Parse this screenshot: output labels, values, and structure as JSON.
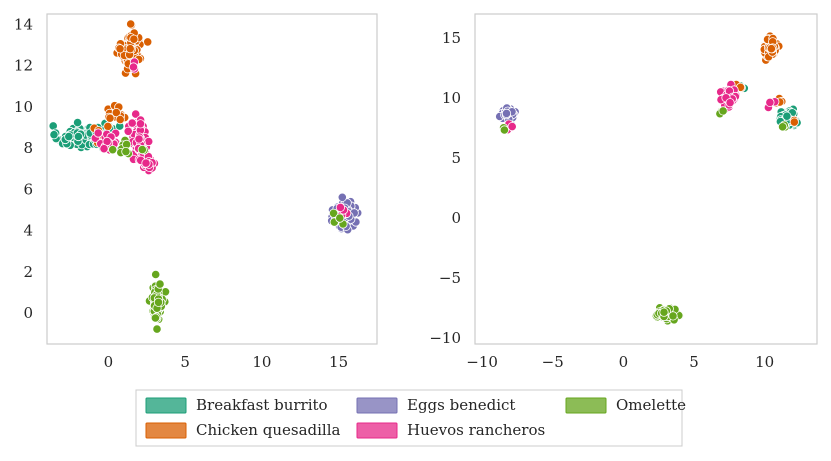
{
  "chart_data": [
    {
      "type": "scatter",
      "title": "",
      "xlabel": "",
      "ylabel": "",
      "xlim": [
        -4,
        17.5
      ],
      "ylim": [
        -1.5,
        14.5
      ],
      "grid": false,
      "xticks": [
        0,
        5,
        10,
        15
      ],
      "xtick_labels": [
        "0",
        "5",
        "10",
        "15"
      ],
      "yticks": [
        0,
        2,
        4,
        6,
        8,
        10,
        12,
        14
      ],
      "ytick_labels": [
        "0",
        "2",
        "4",
        "6",
        "8",
        "10",
        "12",
        "14"
      ],
      "clusters": [
        {
          "series": "Breakfast burrito",
          "cx": -2.0,
          "cy": 8.55,
          "sx": 1.1,
          "sy": 0.45,
          "n": 80
        },
        {
          "series": "Breakfast burrito",
          "cx": -0.5,
          "cy": 8.6,
          "sx": 1.0,
          "sy": 0.5,
          "n": 50
        },
        {
          "series": "Breakfast burrito",
          "cx": 1.5,
          "cy": 13.5,
          "sx": 0.3,
          "sy": 0.3,
          "n": 3
        },
        {
          "series": "Chicken quesadilla",
          "cx": 1.5,
          "cy": 12.8,
          "sx": 0.55,
          "sy": 0.75,
          "n": 110
        },
        {
          "series": "Chicken quesadilla",
          "cx": 0.5,
          "cy": 9.6,
          "sx": 0.6,
          "sy": 0.4,
          "n": 14
        },
        {
          "series": "Chicken quesadilla",
          "cx": -0.5,
          "cy": 8.7,
          "sx": 0.5,
          "sy": 0.5,
          "n": 6
        },
        {
          "series": "Eggs benedict",
          "cx": 15.4,
          "cy": 4.75,
          "sx": 0.55,
          "sy": 0.55,
          "n": 110
        },
        {
          "series": "Huevos rancheros",
          "cx": 2.1,
          "cy": 8.3,
          "sx": 0.5,
          "sy": 0.8,
          "n": 85
        },
        {
          "series": "Huevos rancheros",
          "cx": 2.6,
          "cy": 7.3,
          "sx": 0.4,
          "sy": 0.35,
          "n": 25
        },
        {
          "series": "Huevos rancheros",
          "cx": 0.0,
          "cy": 8.3,
          "sx": 0.6,
          "sy": 0.4,
          "n": 18
        },
        {
          "series": "Huevos rancheros",
          "cx": 1.8,
          "cy": 12.0,
          "sx": 0.25,
          "sy": 0.25,
          "n": 3
        },
        {
          "series": "Huevos rancheros",
          "cx": 15.0,
          "cy": 5.0,
          "sx": 0.3,
          "sy": 0.3,
          "n": 4
        },
        {
          "series": "Omelette",
          "cx": 3.2,
          "cy": 0.6,
          "sx": 0.3,
          "sy": 0.7,
          "n": 90
        },
        {
          "series": "Omelette",
          "cx": 1.0,
          "cy": 8.0,
          "sx": 1.2,
          "sy": 0.35,
          "n": 10
        },
        {
          "series": "Omelette",
          "cx": 14.9,
          "cy": 4.6,
          "sx": 0.3,
          "sy": 0.3,
          "n": 4
        }
      ]
    },
    {
      "type": "scatter",
      "title": "",
      "xlabel": "",
      "ylabel": "",
      "xlim": [
        -10.5,
        13.7
      ],
      "ylim": [
        -10.5,
        17.0
      ],
      "grid": false,
      "xticks": [
        -10,
        -5,
        0,
        5,
        10
      ],
      "xtick_labels": [
        "−10",
        "−5",
        "0",
        "5",
        "10"
      ],
      "yticks": [
        -10,
        -5,
        0,
        5,
        10,
        15
      ],
      "ytick_labels": [
        "−10",
        "−5",
        "0",
        "5",
        "10",
        "15"
      ],
      "clusters": [
        {
          "series": "Breakfast burrito",
          "cx": 11.6,
          "cy": 8.3,
          "sx": 0.5,
          "sy": 0.5,
          "n": 70
        },
        {
          "series": "Breakfast burrito",
          "cx": 8.5,
          "cy": 11.0,
          "sx": 0.3,
          "sy": 0.3,
          "n": 3
        },
        {
          "series": "Chicken quesadilla",
          "cx": 10.4,
          "cy": 14.2,
          "sx": 0.35,
          "sy": 0.7,
          "n": 70
        },
        {
          "series": "Chicken quesadilla",
          "cx": 8.2,
          "cy": 11.0,
          "sx": 0.3,
          "sy": 0.25,
          "n": 5
        },
        {
          "series": "Chicken quesadilla",
          "cx": 11.0,
          "cy": 10.0,
          "sx": 0.3,
          "sy": 0.5,
          "n": 4
        },
        {
          "series": "Chicken quesadilla",
          "cx": 12.2,
          "cy": 8.0,
          "sx": 0.2,
          "sy": 0.3,
          "n": 2
        },
        {
          "series": "Eggs benedict",
          "cx": -8.2,
          "cy": 8.6,
          "sx": 0.4,
          "sy": 0.4,
          "n": 70
        },
        {
          "series": "Huevos rancheros",
          "cx": 7.5,
          "cy": 10.1,
          "sx": 0.5,
          "sy": 0.6,
          "n": 75
        },
        {
          "series": "Huevos rancheros",
          "cx": 10.6,
          "cy": 9.5,
          "sx": 0.3,
          "sy": 0.3,
          "n": 5
        },
        {
          "series": "Huevos rancheros",
          "cx": -7.8,
          "cy": 7.6,
          "sx": 0.3,
          "sy": 0.3,
          "n": 3
        },
        {
          "series": "Omelette",
          "cx": 3.0,
          "cy": -8.0,
          "sx": 0.55,
          "sy": 0.35,
          "n": 80
        },
        {
          "series": "Omelette",
          "cx": -8.4,
          "cy": 7.4,
          "sx": 0.2,
          "sy": 0.2,
          "n": 2
        },
        {
          "series": "Omelette",
          "cx": 7.0,
          "cy": 8.9,
          "sx": 0.3,
          "sy": 0.25,
          "n": 3
        },
        {
          "series": "Omelette",
          "cx": 11.5,
          "cy": 7.7,
          "sx": 0.3,
          "sy": 0.2,
          "n": 3
        }
      ]
    }
  ],
  "legend": {
    "placement": "bottom-center",
    "entries": [
      {
        "label": "Breakfast burrito",
        "color": "#1b9e77"
      },
      {
        "label": "Chicken quesadilla",
        "color": "#d95f02"
      },
      {
        "label": "Eggs benedict",
        "color": "#7570b3"
      },
      {
        "label": "Huevos rancheros",
        "color": "#e7298a"
      },
      {
        "label": "Omelette",
        "color": "#66a61e"
      }
    ]
  }
}
